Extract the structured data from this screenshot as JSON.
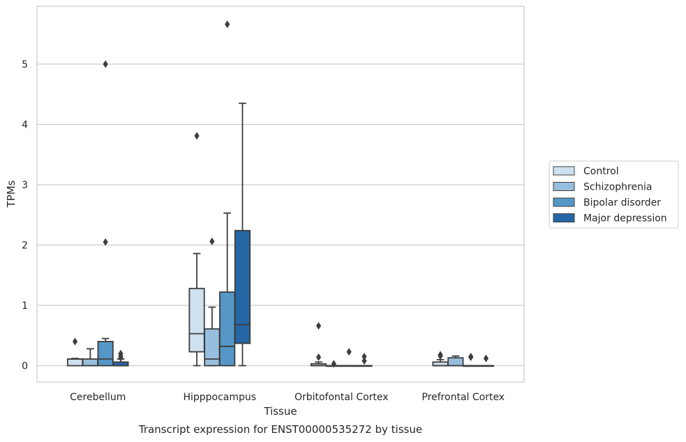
{
  "chart_data": {
    "type": "box",
    "xlabel": "Tissue",
    "ylabel": "TPMs",
    "caption": "Transcript expression for ENST00000535272 by tissue",
    "categories": [
      "Cerebellum",
      "Hipppocampus",
      "Orbitofontal Cortex",
      "Prefrontal Cortex"
    ],
    "ylim": [
      -0.28,
      5.95
    ],
    "yticks": [
      0,
      1,
      2,
      3,
      4,
      5
    ],
    "grid": "horizontal",
    "legend_position": "right",
    "series": [
      {
        "name": "Control",
        "color": "#cfe0ee",
        "boxes": [
          {
            "q1": 0.0,
            "median": 0.11,
            "q3": 0.11,
            "whisker_low": 0.0,
            "whisker_high": 0.12,
            "outliers": [
              0.4
            ]
          },
          {
            "q1": 0.23,
            "median": 0.53,
            "q3": 1.28,
            "whisker_low": 0.0,
            "whisker_high": 1.86,
            "outliers": [
              3.81
            ]
          },
          {
            "q1": 0.0,
            "median": 0.0,
            "q3": 0.03,
            "whisker_low": 0.0,
            "whisker_high": 0.06,
            "outliers": [
              0.66,
              0.14
            ]
          },
          {
            "q1": 0.0,
            "median": 0.0,
            "q3": 0.06,
            "whisker_low": 0.0,
            "whisker_high": 0.1,
            "outliers": [
              0.16,
              0.18
            ]
          }
        ]
      },
      {
        "name": "Schizophrenia",
        "color": "#97bfdd",
        "boxes": [
          {
            "q1": 0.0,
            "median": 0.0,
            "q3": 0.11,
            "whisker_low": 0.0,
            "whisker_high": 0.28,
            "outliers": []
          },
          {
            "q1": 0.0,
            "median": 0.11,
            "q3": 0.61,
            "whisker_low": 0.0,
            "whisker_high": 0.97,
            "outliers": [
              2.06
            ]
          },
          {
            "q1": 0.0,
            "median": 0.0,
            "q3": 0.0,
            "whisker_low": 0.0,
            "whisker_high": 0.0,
            "outliers": [
              0.03
            ]
          },
          {
            "q1": 0.0,
            "median": 0.0,
            "q3": 0.13,
            "whisker_low": 0.0,
            "whisker_high": 0.16,
            "outliers": []
          }
        ]
      },
      {
        "name": "Bipolar disorder",
        "color": "#5597c6",
        "boxes": [
          {
            "q1": 0.0,
            "median": 0.11,
            "q3": 0.4,
            "whisker_low": 0.0,
            "whisker_high": 0.45,
            "outliers": [
              5.0,
              2.05
            ]
          },
          {
            "q1": 0.0,
            "median": 0.32,
            "q3": 1.22,
            "whisker_low": 0.0,
            "whisker_high": 2.53,
            "outliers": [
              5.66
            ]
          },
          {
            "q1": 0.0,
            "median": 0.0,
            "q3": 0.0,
            "whisker_low": 0.0,
            "whisker_high": 0.0,
            "outliers": [
              0.23
            ]
          },
          {
            "q1": 0.0,
            "median": 0.0,
            "q3": 0.0,
            "whisker_low": 0.0,
            "whisker_high": 0.0,
            "outliers": [
              0.14,
              0.15
            ]
          }
        ]
      },
      {
        "name": "Major depression",
        "color": "#2566a5",
        "boxes": [
          {
            "q1": 0.0,
            "median": 0.0,
            "q3": 0.06,
            "whisker_low": 0.0,
            "whisker_high": 0.11,
            "outliers": [
              0.2,
              0.16,
              0.13
            ]
          },
          {
            "q1": 0.37,
            "median": 0.68,
            "q3": 2.24,
            "whisker_low": 0.0,
            "whisker_high": 4.35,
            "outliers": []
          },
          {
            "q1": 0.0,
            "median": 0.0,
            "q3": 0.0,
            "whisker_low": 0.0,
            "whisker_high": 0.0,
            "outliers": [
              0.15,
              0.08
            ]
          },
          {
            "q1": 0.0,
            "median": 0.0,
            "q3": 0.0,
            "whisker_low": 0.0,
            "whisker_high": 0.0,
            "outliers": [
              0.12
            ]
          }
        ]
      }
    ]
  }
}
